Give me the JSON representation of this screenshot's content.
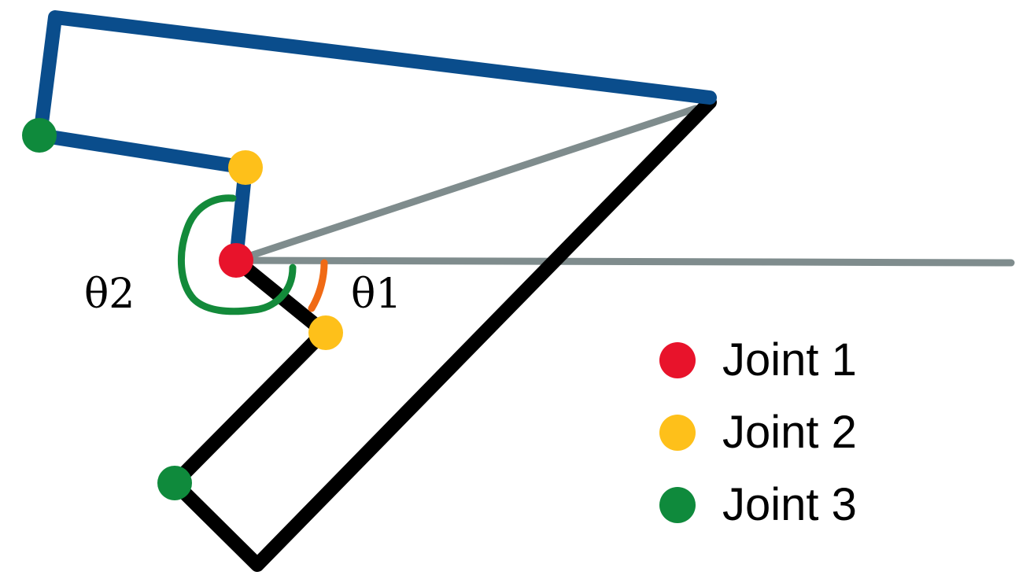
{
  "colors": {
    "arm_pose_a": "#0a4d8c",
    "arm_pose_b": "#000000",
    "reference_line": "#7f8c8d",
    "theta1_arc": "#f06a15",
    "theta2_arc": "#138a3a",
    "joint1": "#e8132b",
    "joint2": "#fec01a",
    "joint3": "#0f8a3c"
  },
  "labels": {
    "theta1": "θ1",
    "theta2": "θ2"
  },
  "legend": [
    {
      "label": "Joint 1",
      "color": "#e8132b"
    },
    {
      "label": "Joint 2",
      "color": "#fec01a"
    },
    {
      "label": "Joint 3",
      "color": "#0f8a3c"
    }
  ]
}
